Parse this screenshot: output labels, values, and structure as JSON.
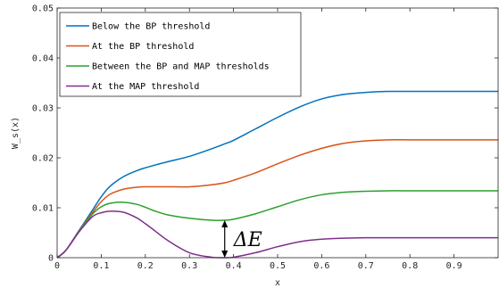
{
  "chart_data": {
    "type": "line",
    "title": "",
    "xlabel": "x",
    "ylabel": "W_s(x)",
    "xlim": [
      0,
      1
    ],
    "ylim": [
      0,
      0.05
    ],
    "grid": false,
    "legend_position": "top-left",
    "x_ticks": [
      "0",
      "0.1",
      "0.2",
      "0.3",
      "0.4",
      "0.5",
      "0.6",
      "0.7",
      "0.8",
      "0.9"
    ],
    "y_ticks": [
      "0",
      "0.01",
      "0.02",
      "0.03",
      "0.04",
      "0.05"
    ],
    "x": [
      0,
      0.02,
      0.05,
      0.08,
      0.1,
      0.12,
      0.15,
      0.18,
      0.2,
      0.22,
      0.25,
      0.3,
      0.35,
      0.38,
      0.4,
      0.45,
      0.5,
      0.55,
      0.6,
      0.65,
      0.7,
      0.75,
      0.8,
      0.85,
      0.9,
      0.95,
      1.0
    ],
    "series": [
      {
        "name": "Below the BP threshold",
        "color": "#0072BD",
        "values": [
          0,
          0.0015,
          0.0055,
          0.0095,
          0.0122,
          0.0143,
          0.0162,
          0.0174,
          0.018,
          0.0185,
          0.0192,
          0.0203,
          0.0218,
          0.0228,
          0.0235,
          0.0258,
          0.0281,
          0.0302,
          0.0318,
          0.0327,
          0.0331,
          0.0333,
          0.0333,
          0.0333,
          0.0333,
          0.0333,
          0.0333
        ]
      },
      {
        "name": "At the BP threshold",
        "color": "#D95319",
        "values": [
          0,
          0.0015,
          0.0054,
          0.009,
          0.0112,
          0.0127,
          0.0137,
          0.0141,
          0.0142,
          0.0142,
          0.0142,
          0.0142,
          0.0146,
          0.015,
          0.0155,
          0.017,
          0.0188,
          0.0205,
          0.0219,
          0.0229,
          0.0234,
          0.0236,
          0.0236,
          0.0236,
          0.0236,
          0.0236,
          0.0236
        ]
      },
      {
        "name": "Between the BP and MAP thresholds",
        "color": "#2CA02C",
        "values": [
          0,
          0.0015,
          0.0053,
          0.0087,
          0.0102,
          0.0109,
          0.0111,
          0.0107,
          0.0101,
          0.0094,
          0.0086,
          0.0079,
          0.0075,
          0.0075,
          0.0077,
          0.0088,
          0.0102,
          0.0116,
          0.0126,
          0.0131,
          0.0133,
          0.0134,
          0.0134,
          0.0134,
          0.0134,
          0.0134,
          0.0134
        ]
      },
      {
        "name": "At the MAP threshold",
        "color": "#7E2F8E",
        "values": [
          0,
          0.0015,
          0.0052,
          0.0082,
          0.009,
          0.0093,
          0.0091,
          0.008,
          0.0068,
          0.0055,
          0.0035,
          0.001,
          0.0001,
          0.0,
          0.0001,
          0.001,
          0.0022,
          0.0032,
          0.0037,
          0.0039,
          0.004,
          0.004,
          0.004,
          0.004,
          0.004,
          0.004,
          0.004
        ]
      }
    ],
    "annotations": [
      {
        "text": "ΔE",
        "x": 0.38,
        "y_from": 0.0075,
        "y_to": 0.0
      }
    ]
  }
}
